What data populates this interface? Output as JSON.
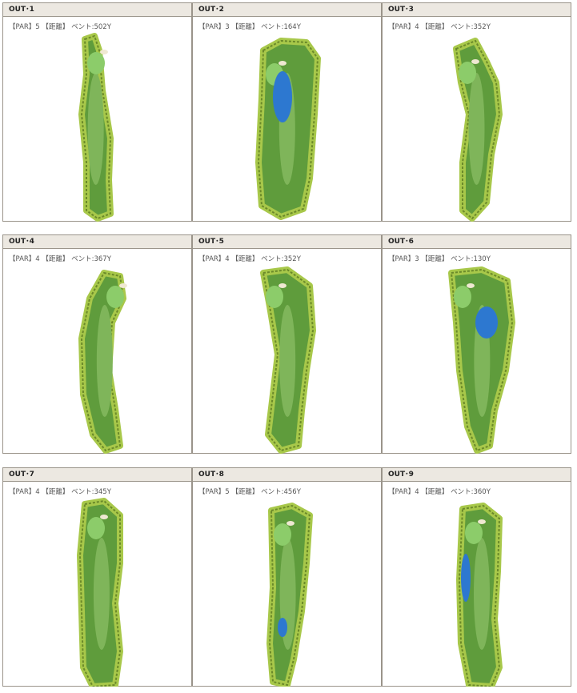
{
  "holes": [
    {
      "title": "OUT･1",
      "info": "【PAR】5 【距離】 ベント:502Y"
    },
    {
      "title": "OUT･2",
      "info": "【PAR】3 【距離】 ベント:164Y"
    },
    {
      "title": "OUT･3",
      "info": "【PAR】4 【距離】 ベント:352Y"
    },
    {
      "title": "OUT･4",
      "info": "【PAR】4 【距離】 ベント:367Y"
    },
    {
      "title": "OUT･5",
      "info": "【PAR】4 【距離】 ベント:352Y"
    },
    {
      "title": "OUT･6",
      "info": "【PAR】3 【距離】 ベント:130Y"
    },
    {
      "title": "OUT･7",
      "info": "【PAR】4 【距離】 ベント:345Y"
    },
    {
      "title": "OUT･8",
      "info": "【PAR】5 【距離】 ベント:456Y"
    },
    {
      "title": "OUT･9",
      "info": "【PAR】4 【距離】 ベント:360Y"
    }
  ]
}
